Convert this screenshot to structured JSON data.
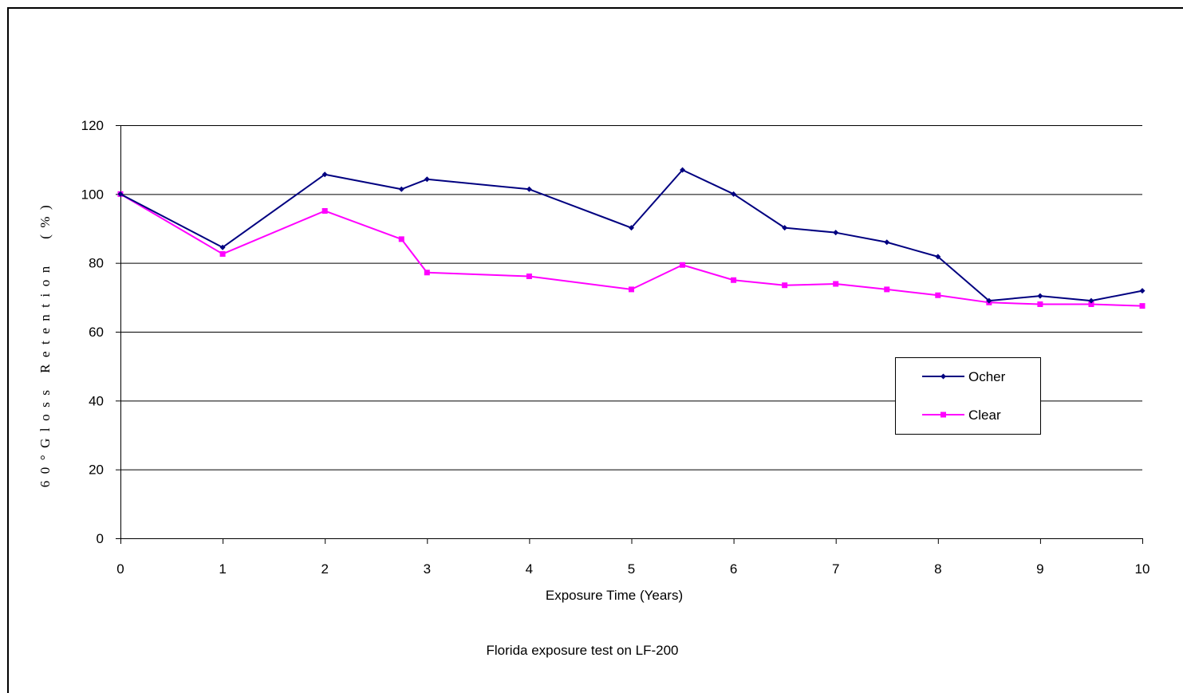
{
  "chart_data": {
    "type": "line",
    "xlabel": "Exposure Time (Years)",
    "ylabel": "60°Gloss Retention　(%)",
    "caption": "Florida exposure test on LF-200",
    "xlim": [
      0,
      10
    ],
    "ylim": [
      0,
      120
    ],
    "xticks": [
      "0",
      "1",
      "2",
      "3",
      "4",
      "5",
      "6",
      "7",
      "8",
      "9",
      "10"
    ],
    "yticks": [
      "0",
      "20",
      "40",
      "60",
      "80",
      "100",
      "120"
    ],
    "grid": true,
    "legend_position": "right",
    "series": [
      {
        "name": "Ocher",
        "color": "#000080",
        "marker": "diamond",
        "x": [
          0,
          1,
          2,
          2.75,
          3,
          4,
          5,
          5.5,
          6,
          6.5,
          7,
          7.5,
          8,
          8.5,
          9,
          9.5,
          10
        ],
        "values": [
          100,
          84.5,
          105.7,
          101.4,
          104.3,
          101.4,
          90.2,
          107,
          100,
          90.2,
          88.8,
          86,
          81.8,
          69,
          70.4,
          69,
          71.9
        ]
      },
      {
        "name": "Clear",
        "color": "#ff00ff",
        "marker": "square",
        "x": [
          0,
          1,
          2,
          2.75,
          3,
          4,
          5,
          5.5,
          6,
          6.5,
          7,
          7.5,
          8,
          8.5,
          9,
          9.5,
          10
        ],
        "values": [
          100,
          82.6,
          95.1,
          86.9,
          77.2,
          76.1,
          72.3,
          79.4,
          75,
          73.5,
          73.9,
          72.3,
          70.6,
          68.5,
          68,
          68,
          67.5
        ]
      }
    ]
  }
}
